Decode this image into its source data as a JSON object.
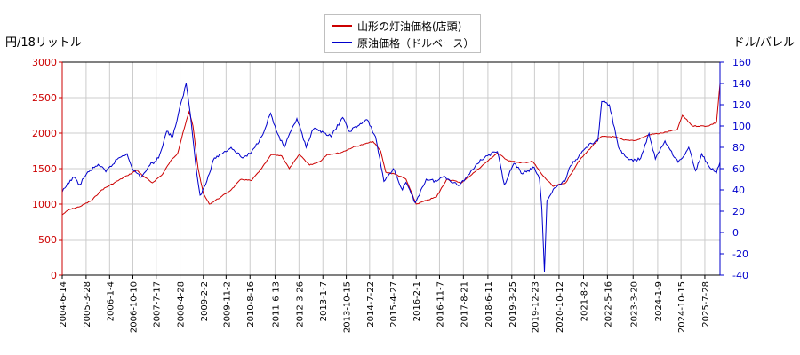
{
  "chart_data": {
    "type": "line",
    "left_axis_label": "円/18リットル",
    "right_axis_label": "ドル/バレル",
    "left_ylim": [
      0,
      3000
    ],
    "left_ticks": [
      0,
      500,
      1000,
      1500,
      2000,
      2500,
      3000
    ],
    "right_ylim": [
      -40,
      160
    ],
    "right_ticks": [
      -40,
      -20,
      0,
      20,
      40,
      60,
      80,
      100,
      120,
      140,
      160
    ],
    "x_range": [
      "2004-06-14",
      "2026-01-26"
    ],
    "x_tick_labels": [
      "2004-6-14",
      "2005-3-28",
      "2006-1-4",
      "2006-10-10",
      "2007-7-17",
      "2008-4-28",
      "2009-2-2",
      "2009-11-2",
      "2010-8-16",
      "2011-6-13",
      "2012-3-26",
      "2013-1-7",
      "2013-10-15",
      "2014-7-22",
      "2015-4-27",
      "2016-2-1",
      "2016-11-7",
      "2017-8-21",
      "2018-6-11",
      "2019-3-25",
      "2019-12-23",
      "2020-10-12",
      "2021-8-2",
      "2022-5-16",
      "2023-3-20",
      "2024-1-9",
      "2024-10-15",
      "2025-7-28"
    ],
    "grid": true,
    "legend_position": "top-center",
    "series": [
      {
        "name": "山形の灯油価格(店頭)",
        "axis": "left",
        "color": "#cc0000",
        "points": [
          [
            "2004-06-14",
            850
          ],
          [
            "2004-09-01",
            920
          ],
          [
            "2005-01-01",
            960
          ],
          [
            "2005-06-01",
            1050
          ],
          [
            "2005-10-01",
            1200
          ],
          [
            "2006-03-01",
            1300
          ],
          [
            "2006-08-01",
            1400
          ],
          [
            "2006-12-01",
            1480
          ],
          [
            "2007-02-01",
            1400
          ],
          [
            "2007-06-01",
            1300
          ],
          [
            "2007-10-01",
            1420
          ],
          [
            "2008-01-01",
            1600
          ],
          [
            "2008-04-01",
            1720
          ],
          [
            "2008-06-01",
            2000
          ],
          [
            "2008-08-15",
            2300
          ],
          [
            "2008-10-01",
            2100
          ],
          [
            "2008-12-01",
            1500
          ],
          [
            "2009-02-01",
            1150
          ],
          [
            "2009-04-15",
            1000
          ],
          [
            "2009-09-01",
            1100
          ],
          [
            "2010-01-01",
            1200
          ],
          [
            "2010-05-01",
            1350
          ],
          [
            "2010-09-01",
            1330
          ],
          [
            "2011-01-01",
            1500
          ],
          [
            "2011-05-01",
            1700
          ],
          [
            "2011-09-01",
            1680
          ],
          [
            "2011-12-01",
            1500
          ],
          [
            "2012-04-01",
            1700
          ],
          [
            "2012-08-01",
            1550
          ],
          [
            "2012-12-01",
            1600
          ],
          [
            "2013-03-01",
            1700
          ],
          [
            "2013-08-01",
            1720
          ],
          [
            "2014-01-01",
            1800
          ],
          [
            "2014-06-01",
            1850
          ],
          [
            "2014-09-01",
            1880
          ],
          [
            "2014-12-01",
            1750
          ],
          [
            "2015-02-01",
            1450
          ],
          [
            "2015-06-01",
            1420
          ],
          [
            "2015-10-01",
            1350
          ],
          [
            "2016-02-01",
            1000
          ],
          [
            "2016-06-01",
            1050
          ],
          [
            "2016-10-01",
            1100
          ],
          [
            "2017-02-01",
            1350
          ],
          [
            "2017-08-01",
            1300
          ],
          [
            "2018-01-01",
            1450
          ],
          [
            "2018-06-01",
            1600
          ],
          [
            "2018-10-01",
            1720
          ],
          [
            "2019-02-01",
            1620
          ],
          [
            "2019-07-01",
            1580
          ],
          [
            "2019-12-01",
            1600
          ],
          [
            "2020-04-01",
            1400
          ],
          [
            "2020-08-01",
            1250
          ],
          [
            "2021-01-01",
            1300
          ],
          [
            "2021-06-01",
            1600
          ],
          [
            "2021-11-01",
            1800
          ],
          [
            "2022-03-01",
            1950
          ],
          [
            "2022-08-01",
            1950
          ],
          [
            "2022-12-01",
            1900
          ],
          [
            "2023-05-01",
            1900
          ],
          [
            "2023-10-01",
            1980
          ],
          [
            "2024-03-01",
            2000
          ],
          [
            "2024-09-01",
            2050
          ],
          [
            "2024-11-01",
            2250
          ],
          [
            "2025-03-01",
            2100
          ],
          [
            "2025-09-01",
            2100
          ],
          [
            "2025-12-15",
            2150
          ],
          [
            "2026-01-26",
            2700
          ]
        ]
      },
      {
        "name": "原油価格（ドルベース）",
        "axis": "right",
        "color": "#0000cc",
        "points": [
          [
            "2004-06-14",
            38
          ],
          [
            "2004-10-20",
            52
          ],
          [
            "2005-01-10",
            45
          ],
          [
            "2005-04-01",
            55
          ],
          [
            "2005-08-20",
            64
          ],
          [
            "2005-11-20",
            57
          ],
          [
            "2006-04-20",
            70
          ],
          [
            "2006-08-01",
            74
          ],
          [
            "2006-10-20",
            58
          ],
          [
            "2007-01-20",
            52
          ],
          [
            "2007-05-01",
            63
          ],
          [
            "2007-08-15",
            70
          ],
          [
            "2007-11-20",
            95
          ],
          [
            "2008-02-01",
            90
          ],
          [
            "2008-07-10",
            140
          ],
          [
            "2008-09-01",
            110
          ],
          [
            "2008-11-01",
            65
          ],
          [
            "2008-12-25",
            35
          ],
          [
            "2009-03-01",
            45
          ],
          [
            "2009-06-15",
            70
          ],
          [
            "2009-10-01",
            75
          ],
          [
            "2010-01-01",
            80
          ],
          [
            "2010-05-20",
            70
          ],
          [
            "2010-09-01",
            75
          ],
          [
            "2011-01-01",
            90
          ],
          [
            "2011-04-20",
            112
          ],
          [
            "2011-07-01",
            95
          ],
          [
            "2011-10-01",
            80
          ],
          [
            "2012-03-01",
            107
          ],
          [
            "2012-06-20",
            80
          ],
          [
            "2012-09-15",
            97
          ],
          [
            "2013-01-01",
            95
          ],
          [
            "2013-04-15",
            90
          ],
          [
            "2013-09-01",
            108
          ],
          [
            "2013-11-15",
            95
          ],
          [
            "2014-03-01",
            100
          ],
          [
            "2014-06-20",
            106
          ],
          [
            "2014-10-01",
            90
          ],
          [
            "2015-01-10",
            48
          ],
          [
            "2015-05-01",
            60
          ],
          [
            "2015-08-20",
            40
          ],
          [
            "2015-10-01",
            47
          ],
          [
            "2016-01-20",
            28
          ],
          [
            "2016-06-01",
            50
          ],
          [
            "2016-10-01",
            48
          ],
          [
            "2017-01-01",
            53
          ],
          [
            "2017-06-20",
            44
          ],
          [
            "2017-10-01",
            52
          ],
          [
            "2018-01-20",
            64
          ],
          [
            "2018-05-20",
            72
          ],
          [
            "2018-10-03",
            76
          ],
          [
            "2018-12-25",
            45
          ],
          [
            "2019-04-20",
            65
          ],
          [
            "2019-08-01",
            55
          ],
          [
            "2019-12-20",
            61
          ],
          [
            "2020-02-20",
            50
          ],
          [
            "2020-03-20",
            22
          ],
          [
            "2020-04-20",
            -37
          ],
          [
            "2020-05-20",
            30
          ],
          [
            "2020-08-20",
            42
          ],
          [
            "2020-12-20",
            48
          ],
          [
            "2021-03-01",
            63
          ],
          [
            "2021-07-01",
            74
          ],
          [
            "2021-10-25",
            84
          ],
          [
            "2022-01-20",
            86
          ],
          [
            "2022-03-08",
            123
          ],
          [
            "2022-06-08",
            120
          ],
          [
            "2022-09-25",
            80
          ],
          [
            "2022-12-10",
            72
          ],
          [
            "2023-03-20",
            67
          ],
          [
            "2023-06-20",
            70
          ],
          [
            "2023-09-27",
            93
          ],
          [
            "2023-12-12",
            69
          ],
          [
            "2024-04-05",
            86
          ],
          [
            "2024-09-10",
            66
          ],
          [
            "2024-11-01",
            70
          ],
          [
            "2025-01-15",
            80
          ],
          [
            "2025-04-08",
            58
          ],
          [
            "2025-06-20",
            74
          ],
          [
            "2025-09-01",
            64
          ],
          [
            "2025-12-15",
            56
          ],
          [
            "2026-01-26",
            66
          ]
        ]
      }
    ]
  }
}
